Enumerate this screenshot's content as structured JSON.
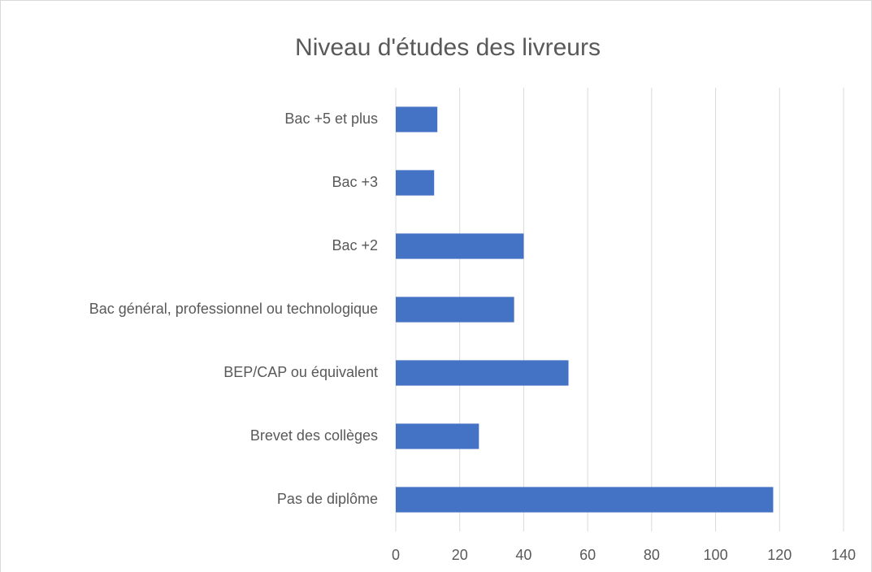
{
  "chart_data": {
    "type": "hbar",
    "title": "Niveau d'études des livreurs",
    "categories": [
      "Pas de diplôme",
      "Brevet des collèges",
      "BEP/CAP ou équivalent",
      "Bac général, professionnel ou technologique",
      "Bac +2",
      "Bac +3",
      "Bac +5 et plus"
    ],
    "values": [
      118,
      26,
      54,
      37,
      40,
      12,
      13
    ],
    "color": "#4472c4",
    "xlim": [
      0,
      140
    ],
    "xticks": [
      0,
      20,
      40,
      60,
      80,
      100,
      120,
      140
    ],
    "grid": true
  }
}
